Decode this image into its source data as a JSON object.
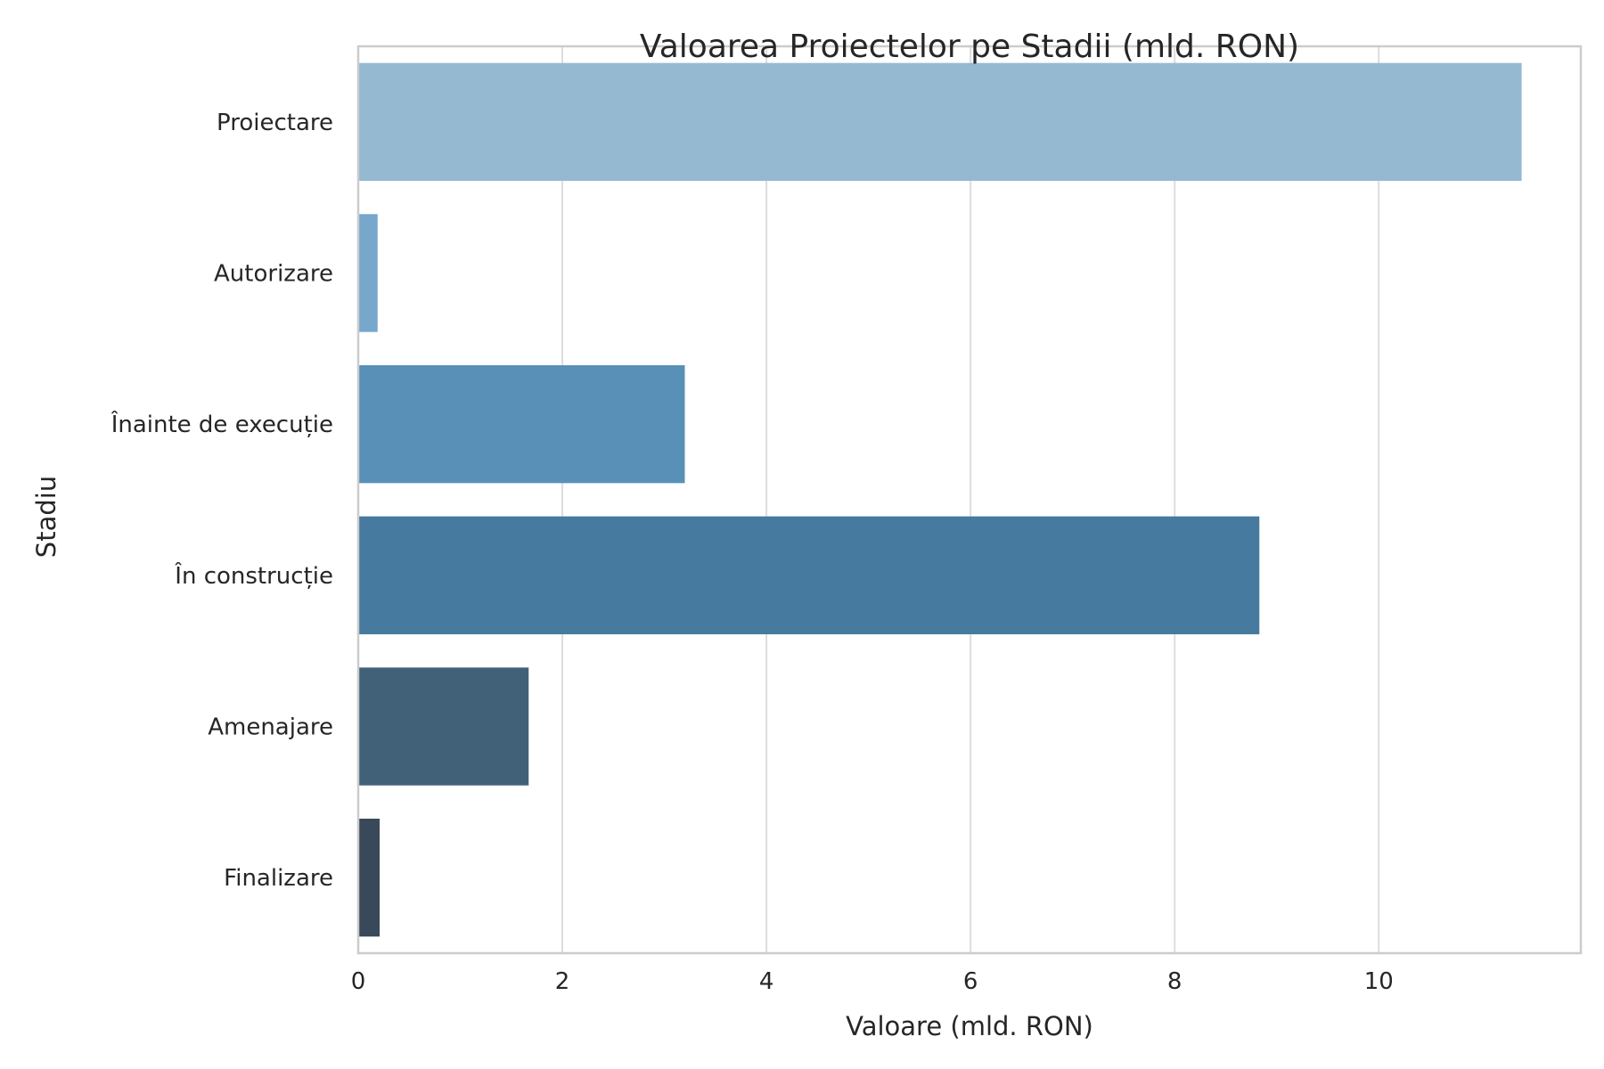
{
  "chart_data": {
    "type": "bar",
    "orientation": "horizontal",
    "title": "Valoarea Proiectelor pe Stadii (mld. RON)",
    "xlabel": "Valoare (mld. RON)",
    "ylabel": "Stadiu",
    "categories": [
      "Proiectare",
      "Autorizare",
      "Înainte de execuție",
      "În construcție",
      "Amenajare",
      "Finalizare"
    ],
    "values": [
      11.4,
      0.19,
      3.2,
      8.83,
      1.67,
      0.21
    ],
    "colors": [
      "#96b9d2",
      "#77a8cc",
      "#5890b8",
      "#467a9e",
      "#416179",
      "#39495a"
    ],
    "xticks": [
      "0",
      "2",
      "4",
      "6",
      "8",
      "10"
    ],
    "xlim": [
      0,
      11.98
    ],
    "grid": true,
    "legend": "none"
  }
}
